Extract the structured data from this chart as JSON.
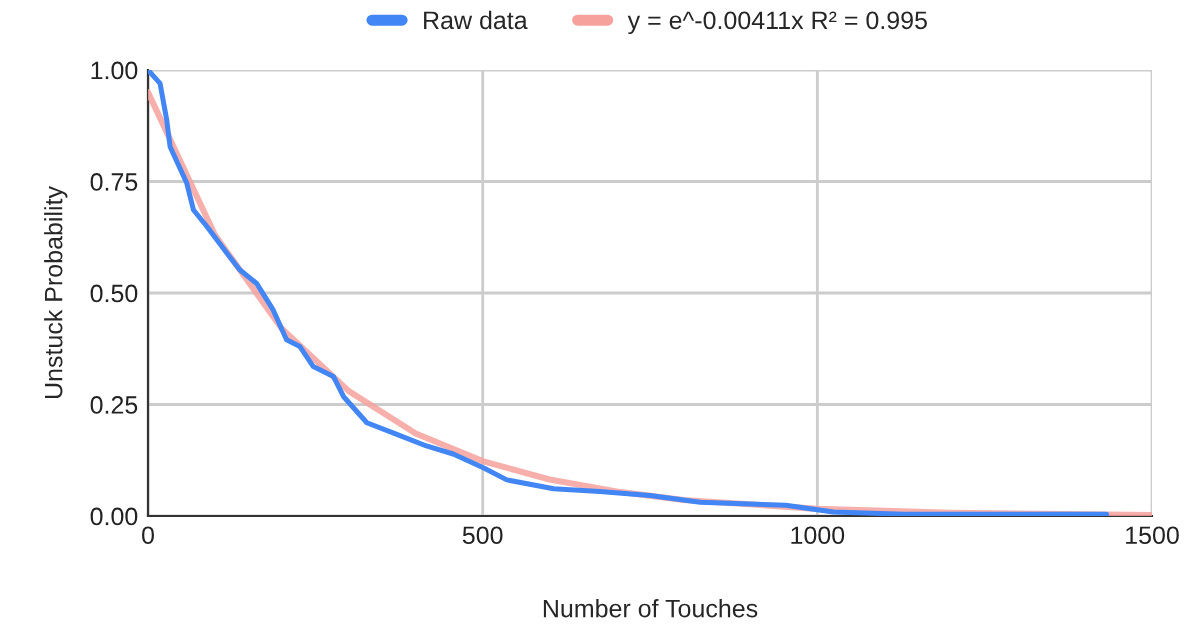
{
  "chart_data": {
    "type": "line",
    "xlabel": "Number of Touches",
    "ylabel": "Unstuck Probability",
    "series": [
      {
        "name": "Raw data",
        "color": "#4285f4",
        "x": [
          0,
          18,
          28,
          33,
          58,
          68,
          88,
          118,
          137,
          162,
          187,
          207,
          227,
          247,
          277,
          292,
          327,
          367,
          416,
          456,
          501,
          536,
          606,
          675,
          750,
          825,
          953,
          1024,
          1129,
          1432
        ],
        "values": [
          1.0,
          0.97,
          0.888,
          0.828,
          0.746,
          0.686,
          0.649,
          0.589,
          0.552,
          0.522,
          0.462,
          0.395,
          0.38,
          0.335,
          0.313,
          0.268,
          0.209,
          0.186,
          0.157,
          0.139,
          0.108,
          0.081,
          0.061,
          0.055,
          0.046,
          0.031,
          0.024,
          0.009,
          0.004,
          0.004
        ]
      },
      {
        "name": "y = e^-0.00411x R² = 0.995",
        "color": "#f6a19c",
        "x": [
          0,
          100,
          200,
          300,
          400,
          500,
          600,
          700,
          800,
          1000,
          1200,
          1500
        ],
        "values": [
          0.95,
          0.63,
          0.42,
          0.28,
          0.185,
          0.123,
          0.082,
          0.055,
          0.036,
          0.016,
          0.007,
          0.002
        ]
      }
    ],
    "xlim": [
      0,
      1500
    ],
    "xticks": [
      0,
      500,
      1000,
      1500
    ],
    "ylim": [
      0,
      1
    ],
    "yticks": [
      {
        "value": 0,
        "label": "0.00"
      },
      {
        "value": 0.25,
        "label": "0.25"
      },
      {
        "value": 0.5,
        "label": "0.50"
      },
      {
        "value": 0.75,
        "label": "0.75"
      },
      {
        "value": 1,
        "label": "1.00"
      }
    ],
    "grid": true,
    "legend": "top",
    "marker": "none",
    "line_style": "solid"
  }
}
